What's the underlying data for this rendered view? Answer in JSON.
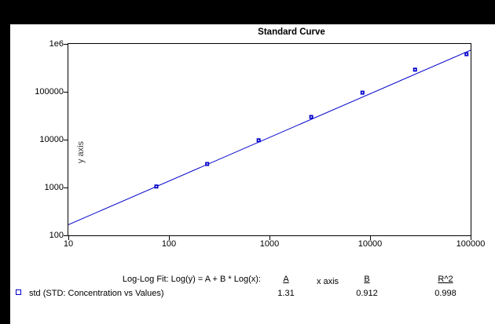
{
  "chart": {
    "title": "Standard Curve",
    "xlabel": "x axis",
    "ylabel": "y axis",
    "accent_color": "#0000CC",
    "background_color": "#FFFFFF",
    "surround_color": "#000000"
  },
  "chart_data": {
    "type": "scatter",
    "title": "Standard Curve",
    "xlabel": "x axis",
    "ylabel": "y axis",
    "x_scale": "log",
    "y_scale": "log",
    "xlim": [
      10,
      100000
    ],
    "ylim": [
      100,
      1000000
    ],
    "x_tick_labels": [
      "10",
      "100",
      "1000",
      "10000",
      "100000"
    ],
    "y_tick_labels": [
      "1e6",
      "100000",
      "10000",
      "1000",
      "100"
    ],
    "grid": false,
    "legend_position": "bottom-left",
    "series": [
      {
        "name": "std (STD: Concentration vs Values)",
        "marker": "square",
        "color": "#0000CC",
        "x": [
          75,
          240,
          780,
          2600,
          8400,
          28000,
          91000
        ],
        "y": [
          1050,
          3100,
          9700,
          29800,
          96000,
          290000,
          610000
        ]
      }
    ],
    "fit_line": {
      "model": "Log(y) = A + B * Log(x)",
      "A": 1.31,
      "B": 0.912,
      "R2": 0.998
    }
  },
  "fit_table": {
    "equation_label": "Log-Log Fit: Log(y) = A + B * Log(x):",
    "col_a": "A",
    "col_b": "B",
    "col_r2": "R^2",
    "series_label": "std (STD: Concentration vs Values)",
    "value_a": "1.31",
    "value_b": "0.912",
    "value_r2": "0.998"
  }
}
